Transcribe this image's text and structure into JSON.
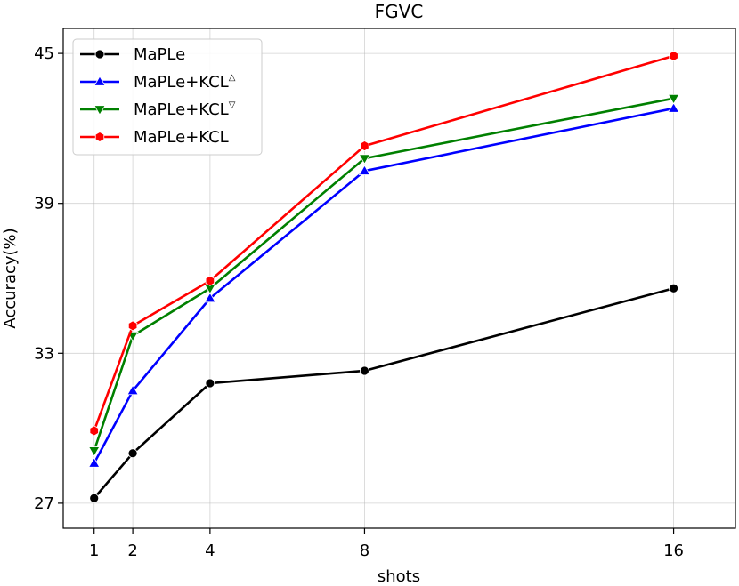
{
  "chart_data": {
    "type": "line",
    "title": "FGVC",
    "xlabel": "shots",
    "ylabel": "Accuracy(%)",
    "x": [
      1,
      2,
      4,
      8,
      16
    ],
    "xticks": [
      "1",
      "2",
      "4",
      "8",
      "16"
    ],
    "yticks": [
      27,
      33,
      39,
      45
    ],
    "ylim": [
      26.0,
      46.0
    ],
    "xlim": [
      0.2,
      17.6
    ],
    "grid": true,
    "legend_position": "top-left",
    "series": [
      {
        "name": "MaPLe",
        "label": "MaPLe",
        "sup": "",
        "color": "#000000",
        "marker": "circle",
        "values": [
          27.2,
          29.0,
          31.8,
          32.3,
          35.6
        ]
      },
      {
        "name": "MaPLe+KCL△",
        "label": "MaPLe+KCL",
        "sup": "△",
        "color": "#0000ff",
        "marker": "triangle-up",
        "values": [
          28.6,
          31.5,
          35.2,
          40.3,
          42.8
        ]
      },
      {
        "name": "MaPLe+KCL▽",
        "label": "MaPLe+KCL",
        "sup": "▽",
        "color": "#008000",
        "marker": "triangle-down",
        "values": [
          29.1,
          33.7,
          35.6,
          40.8,
          43.2
        ]
      },
      {
        "name": "MaPLe+KCL",
        "label": "MaPLe+KCL",
        "sup": "",
        "color": "#ff0000",
        "marker": "hexagon",
        "values": [
          29.9,
          34.1,
          35.9,
          41.3,
          44.9
        ]
      }
    ]
  }
}
